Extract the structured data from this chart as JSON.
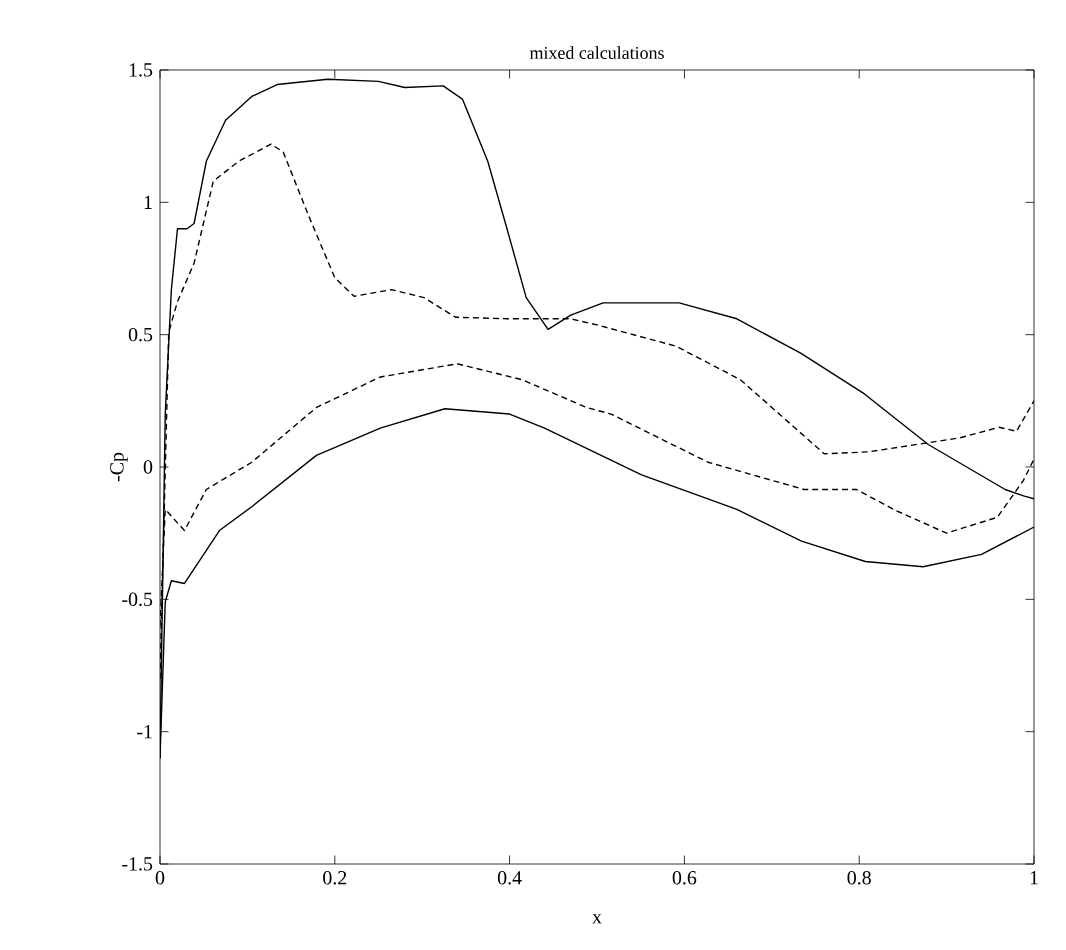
{
  "chart_data": {
    "type": "line",
    "title": "mixed calculations",
    "xlabel": "x",
    "ylabel": "-Cp",
    "xlim": [
      0,
      1
    ],
    "ylim": [
      -1.5,
      1.5
    ],
    "xticks": [
      0,
      0.2,
      0.4,
      0.6,
      0.8,
      1
    ],
    "yticks": [
      -1.5,
      -1,
      -0.5,
      0,
      0.5,
      1,
      1.5
    ],
    "marker": "none",
    "series": [
      {
        "color": "#000000",
        "line_style": "solid",
        "x": [
          0,
          0.006,
          0.013,
          0.02,
          0.031,
          0.039,
          0.053,
          0.075,
          0.105,
          0.134,
          0.192,
          0.25,
          0.28,
          0.324,
          0.346,
          0.375,
          0.397,
          0.419,
          0.444,
          0.47,
          0.507,
          0.594,
          0.66,
          0.733,
          0.806,
          0.879,
          0.967,
          0.989,
          1
        ],
        "values": [
          -1.1,
          0.2,
          0.67,
          0.9,
          0.9,
          0.92,
          1.155,
          1.31,
          1.4,
          1.445,
          1.465,
          1.457,
          1.434,
          1.44,
          1.39,
          1.155,
          0.9,
          0.64,
          0.52,
          0.574,
          0.62,
          0.62,
          0.56,
          0.43,
          0.276,
          0.085,
          -0.085,
          -0.11,
          -0.12
        ]
      },
      {
        "color": "#000000",
        "line_style": "dashed",
        "x": [
          0,
          0.01,
          0.02,
          0.039,
          0.061,
          0.09,
          0.127,
          0.141,
          0.17,
          0.2,
          0.222,
          0.265,
          0.302,
          0.338,
          0.397,
          0.47,
          0.502,
          0.59,
          0.664,
          0.76,
          0.81,
          0.915,
          0.96,
          0.98,
          1
        ],
        "values": [
          -0.8,
          0.51,
          0.625,
          0.77,
          1.08,
          1.155,
          1.22,
          1.19,
          0.95,
          0.715,
          0.645,
          0.67,
          0.64,
          0.566,
          0.56,
          0.56,
          0.535,
          0.457,
          0.33,
          0.05,
          0.057,
          0.11,
          0.15,
          0.135,
          0.25
        ]
      },
      {
        "color": "#000000",
        "line_style": "dashed",
        "x": [
          0,
          0.006,
          0.028,
          0.053,
          0.105,
          0.179,
          0.252,
          0.34,
          0.414,
          0.488,
          0.516,
          0.627,
          0.737,
          0.797,
          0.841,
          0.9,
          0.958,
          0.988,
          1
        ],
        "values": [
          -0.6,
          -0.16,
          -0.24,
          -0.085,
          0.018,
          0.225,
          0.34,
          0.39,
          0.33,
          0.225,
          0.2,
          0.018,
          -0.085,
          -0.085,
          -0.163,
          -0.25,
          -0.19,
          -0.05,
          0.03
        ]
      },
      {
        "color": "#000000",
        "line_style": "solid",
        "x": [
          0,
          0.006,
          0.013,
          0.028,
          0.068,
          0.105,
          0.179,
          0.252,
          0.326,
          0.4,
          0.44,
          0.551,
          0.66,
          0.734,
          0.807,
          0.873,
          0.94,
          1
        ],
        "values": [
          -1.1,
          -0.51,
          -0.43,
          -0.44,
          -0.24,
          -0.15,
          0.044,
          0.147,
          0.22,
          0.2,
          0.147,
          -0.03,
          -0.16,
          -0.28,
          -0.357,
          -0.377,
          -0.33,
          -0.227
        ]
      }
    ]
  }
}
